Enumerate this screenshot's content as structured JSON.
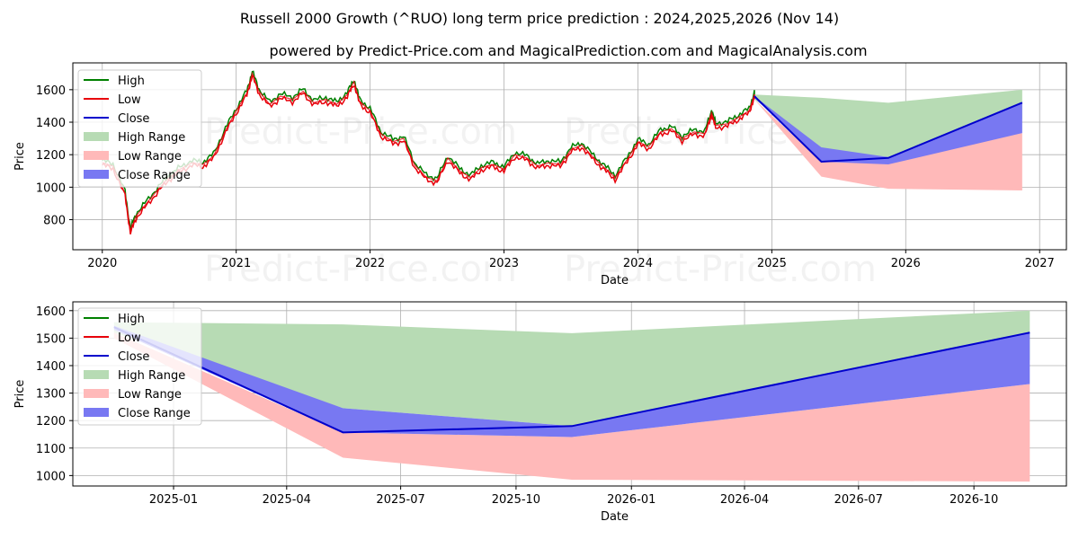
{
  "title_line1": "Russell 2000 Growth (^RUO) long term price prediction : 2024,2025,2026 (Nov 14)",
  "title_line2": "powered by Predict-Price.com and MagicalPrediction.com and MagicalAnalysis.com",
  "watermark": "Predict-Price.com",
  "colors": {
    "high": "#008000",
    "low": "#e8000b",
    "close": "#0000cc",
    "high_range": "#b7dbb4",
    "low_range": "#ffb9b9",
    "close_range": "#7878f2",
    "grid": "#b0b0b0"
  },
  "chart_data": [
    {
      "type": "line",
      "name": "overview",
      "xlabel": "Date",
      "ylabel": "Price",
      "xlim": [
        2019.78,
        2027.2
      ],
      "ylim": [
        615,
        1765
      ],
      "x_ticks": [
        2020,
        2021,
        2022,
        2023,
        2024,
        2025,
        2026,
        2027
      ],
      "x_tick_labels": [
        "2020",
        "2021",
        "2022",
        "2023",
        "2024",
        "2025",
        "2026",
        "2027"
      ],
      "y_ticks": [
        800,
        1000,
        1200,
        1400,
        1600
      ],
      "legend": [
        "High",
        "Low",
        "Close",
        "High Range",
        "Low Range",
        "Close Range"
      ],
      "legend_position": "top-left",
      "grid": true,
      "history_x": [
        2020.0,
        2020.08,
        2020.17,
        2020.21,
        2020.25,
        2020.33,
        2020.42,
        2020.5,
        2020.58,
        2020.67,
        2020.75,
        2020.83,
        2020.92,
        2021.0,
        2021.08,
        2021.12,
        2021.17,
        2021.25,
        2021.33,
        2021.42,
        2021.5,
        2021.58,
        2021.67,
        2021.75,
        2021.83,
        2021.88,
        2021.92,
        2022.0,
        2022.08,
        2022.17,
        2022.25,
        2022.33,
        2022.42,
        2022.5,
        2022.58,
        2022.67,
        2022.75,
        2022.83,
        2022.92,
        2023.0,
        2023.08,
        2023.17,
        2023.25,
        2023.33,
        2023.42,
        2023.5,
        2023.58,
        2023.67,
        2023.75,
        2023.83,
        2023.92,
        2024.0,
        2024.08,
        2024.17,
        2024.25,
        2024.33,
        2024.42,
        2024.5,
        2024.55,
        2024.58,
        2024.67,
        2024.75,
        2024.83,
        2024.87
      ],
      "history_close": [
        1150,
        1130,
        960,
        730,
        820,
        900,
        990,
        1060,
        1110,
        1150,
        1140,
        1190,
        1350,
        1470,
        1580,
        1700,
        1590,
        1510,
        1560,
        1540,
        1590,
        1520,
        1540,
        1510,
        1570,
        1650,
        1530,
        1470,
        1330,
        1280,
        1300,
        1140,
        1060,
        1040,
        1180,
        1100,
        1060,
        1120,
        1140,
        1110,
        1200,
        1180,
        1130,
        1150,
        1140,
        1230,
        1260,
        1180,
        1120,
        1060,
        1170,
        1280,
        1250,
        1340,
        1360,
        1300,
        1340,
        1330,
        1460,
        1380,
        1390,
        1430,
        1470,
        1570
      ],
      "forecast_x": [
        2024.87,
        2025.37,
        2025.87,
        2026.87
      ],
      "forecast_close": [
        1560,
        1157,
        1180,
        1520
      ],
      "high_range_upper": [
        1570,
        1550,
        1520,
        1600
      ],
      "high_range_lower": [
        1540,
        1240,
        1180,
        1420
      ],
      "low_range_upper": [
        1540,
        1157,
        1150,
        1333
      ],
      "low_range_lower": [
        1540,
        1065,
        990,
        980
      ],
      "close_range_upper": [
        1560,
        1245,
        1185,
        1520
      ],
      "close_range_lower": [
        1550,
        1157,
        1140,
        1333
      ]
    },
    {
      "type": "area",
      "name": "zoom",
      "xlabel": "Date",
      "ylabel": "Price",
      "xlim": [
        2024.78,
        2026.95
      ],
      "ylim": [
        962,
        1632
      ],
      "x_ticks": [
        2025.0,
        2025.247,
        2025.496,
        2025.748,
        2026.0,
        2026.247,
        2026.496,
        2026.748
      ],
      "x_tick_labels": [
        "2025-01",
        "2025-04",
        "2025-07",
        "2025-10",
        "2026-01",
        "2026-04",
        "2026-07",
        "2026-10"
      ],
      "y_ticks": [
        1000,
        1100,
        1200,
        1300,
        1400,
        1500,
        1600
      ],
      "legend": [
        "High",
        "Low",
        "Close",
        "High Range",
        "Low Range",
        "Close Range"
      ],
      "legend_position": "top-left",
      "grid": true,
      "forecast_x": [
        2024.87,
        2025.37,
        2025.87,
        2026.87
      ],
      "forecast_close": [
        1540,
        1157,
        1180,
        1520
      ],
      "high_range_upper": [
        1558,
        1550,
        1518,
        1600
      ],
      "high_range_lower": [
        1520,
        1245,
        1180,
        1420
      ],
      "low_range_upper": [
        1520,
        1157,
        1140,
        1333
      ],
      "low_range_lower": [
        1500,
        1065,
        985,
        978
      ],
      "close_range_upper": [
        1545,
        1245,
        1180,
        1520
      ],
      "close_range_lower": [
        1530,
        1157,
        1140,
        1333
      ]
    }
  ]
}
